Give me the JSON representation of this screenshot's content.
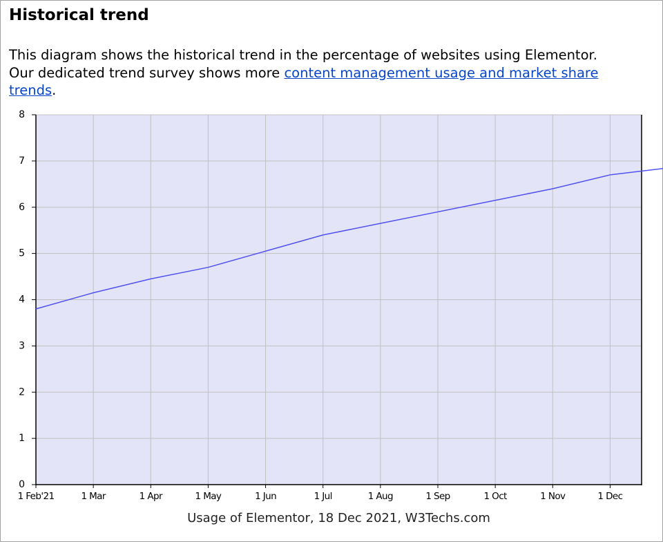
{
  "header": {
    "title": "Historical trend"
  },
  "intro": {
    "line1": "This diagram shows the historical trend in the percentage of websites using Elementor.",
    "line2": "Our dedicated trend survey shows more ",
    "link": "content management usage and market share trends",
    "end": "."
  },
  "chart_data": {
    "type": "line",
    "caption": "Usage of Elementor, 18 Dec 2021, W3Techs.com",
    "categories": [
      "1 Feb'21",
      "1 Mar",
      "1 Apr",
      "1 May",
      "1 Jun",
      "1 Jul",
      "1 Aug",
      "1 Sep",
      "1 Oct",
      "1 Nov",
      "1 Dec",
      null
    ],
    "series": [
      {
        "color": "#5050f0",
        "values": [
          3.8,
          4.15,
          4.45,
          4.7,
          5.05,
          5.4,
          5.65,
          5.9,
          6.15,
          6.4,
          6.7,
          6.85
        ]
      }
    ],
    "ylim": [
      0,
      8
    ],
    "yticks": [
      0,
      1,
      2,
      3,
      4,
      5,
      6,
      7,
      8
    ],
    "grid": true,
    "background": "#e4e4f8"
  }
}
